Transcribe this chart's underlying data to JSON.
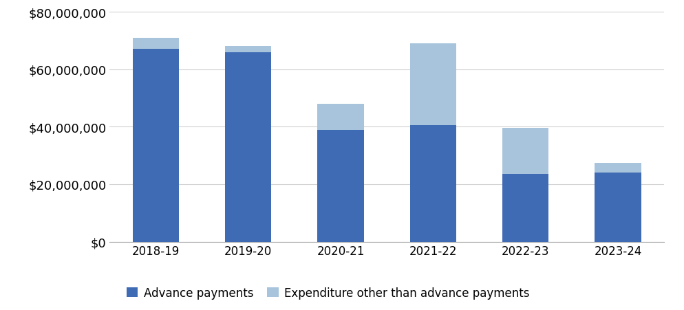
{
  "categories": [
    "2018-19",
    "2019-20",
    "2020-21",
    "2021-22",
    "2022-23",
    "2023-24"
  ],
  "advance_payments": [
    67000000,
    66000000,
    39000000,
    40500000,
    23500000,
    24000000
  ],
  "other_payments": [
    4000000,
    2000000,
    9000000,
    28500000,
    16000000,
    3500000
  ],
  "advance_color": "#3F6BB5",
  "other_color": "#A8C4DC",
  "legend_labels": [
    "Advance payments",
    "Expenditure other than advance payments"
  ],
  "ylim": [
    0,
    80000000
  ],
  "yticks": [
    0,
    20000000,
    40000000,
    60000000,
    80000000
  ],
  "background_color": "#ffffff",
  "grid_color": "#d0d0d0",
  "bar_width": 0.5,
  "ytick_fontsize": 13,
  "xtick_fontsize": 12,
  "legend_fontsize": 12
}
